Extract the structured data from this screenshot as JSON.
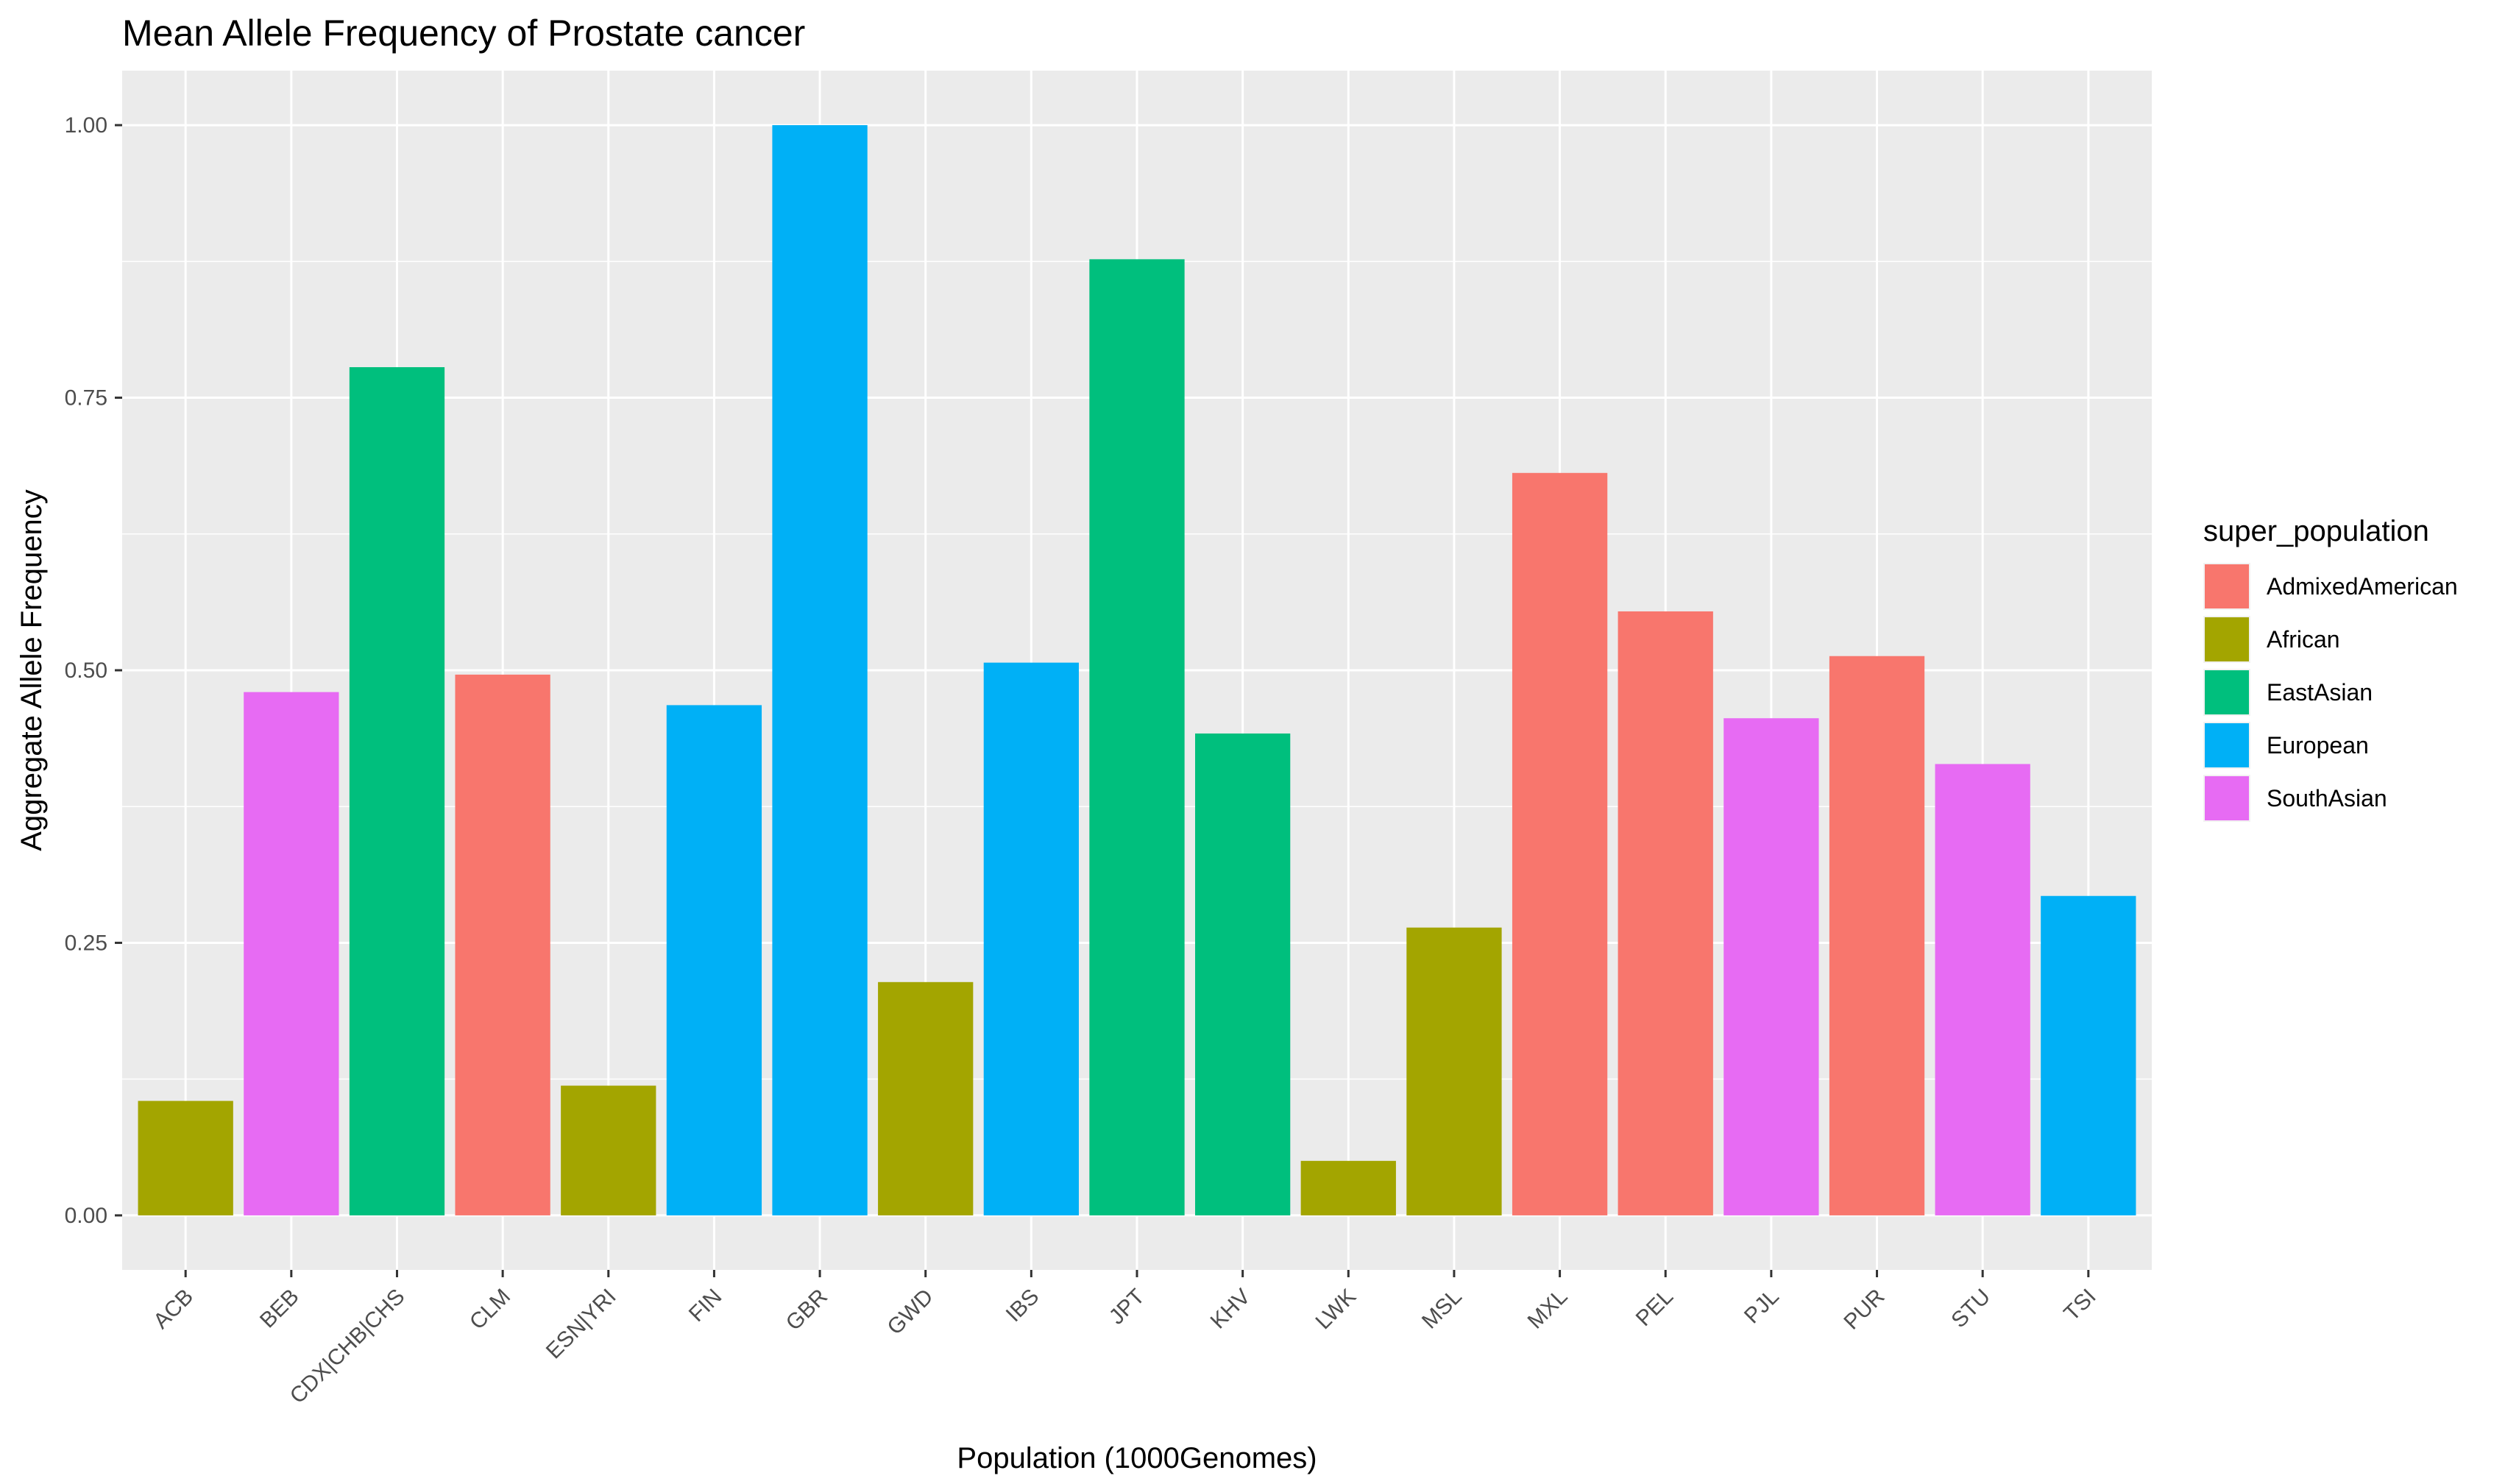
{
  "chart_data": {
    "type": "bar",
    "title": "Mean Allele Frequency of Prostate cancer",
    "xlabel": "Population (1000Genomes)",
    "ylabel": "Aggregate Allele Frequency",
    "ylim": [
      -0.05,
      1.05
    ],
    "yticks": [
      "0.00",
      "0.25",
      "0.50",
      "0.75",
      "1.00"
    ],
    "ytick_values": [
      0,
      0.25,
      0.5,
      0.75,
      1.0
    ],
    "grid": true,
    "legend_placement": "right",
    "legend_title": "super_population",
    "categories": [
      "ACB",
      "BEB",
      "CDX|CHB|CHS",
      "CLM",
      "ESN|YRI",
      "FIN",
      "GBR",
      "GWD",
      "IBS",
      "JPT",
      "KHV",
      "LWK",
      "MSL",
      "MXL",
      "PEL",
      "PJL",
      "PUR",
      "STU",
      "TSI"
    ],
    "values": [
      0.105,
      0.48,
      0.778,
      0.496,
      0.119,
      0.468,
      1.0,
      0.214,
      0.507,
      0.877,
      0.442,
      0.05,
      0.264,
      0.681,
      0.554,
      0.456,
      0.513,
      0.414,
      0.293
    ],
    "groups": [
      "African",
      "SouthAsian",
      "EastAsian",
      "AdmixedAmerican",
      "African",
      "European",
      "European",
      "African",
      "European",
      "EastAsian",
      "EastAsian",
      "African",
      "African",
      "AdmixedAmerican",
      "AdmixedAmerican",
      "SouthAsian",
      "AdmixedAmerican",
      "SouthAsian",
      "European"
    ],
    "legend": [
      {
        "name": "AdmixedAmerican",
        "color": "#F8766D"
      },
      {
        "name": "African",
        "color": "#A3A500"
      },
      {
        "name": "EastAsian",
        "color": "#00BF7D"
      },
      {
        "name": "European",
        "color": "#00B0F6"
      },
      {
        "name": "SouthAsian",
        "color": "#E76BF3"
      }
    ],
    "panel_background": "#EBEBEB",
    "gridline_color": "#FFFFFF"
  }
}
